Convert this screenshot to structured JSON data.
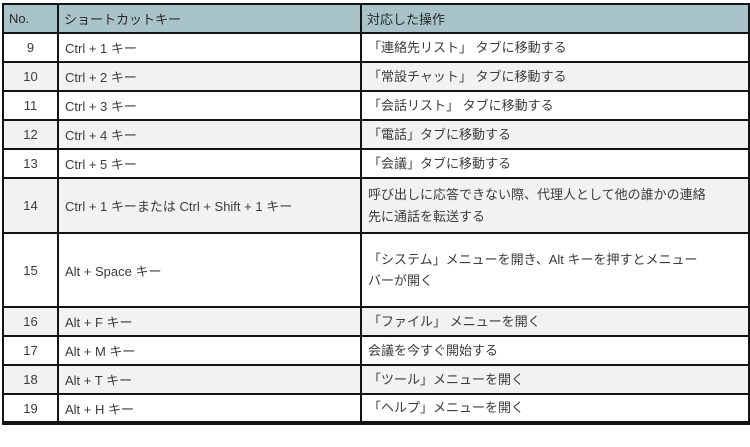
{
  "table": {
    "headers": {
      "no": "No.",
      "key": "ショートカットキー",
      "op": "対応した操作"
    },
    "rows": [
      {
        "no": "9",
        "key": "Ctrl + 1 キー",
        "op": "「連絡先リスト」 タブに移動する"
      },
      {
        "no": "10",
        "key": "Ctrl + 2 キー",
        "op": "「常設チャット」 タブに移動する"
      },
      {
        "no": "11",
        "key": "Ctrl + 3 キー",
        "op": "「会話リスト」 タブに移動する"
      },
      {
        "no": "12",
        "key": "Ctrl + 4 キー",
        "op": "「電話」タブに移動する"
      },
      {
        "no": "13",
        "key": "Ctrl + 5 キー",
        "op": "「会議」タブに移動する"
      },
      {
        "no": "14",
        "key": "Ctrl + 1 キーまたは Ctrl + Shift + 1 キー",
        "op": "呼び出しに応答できない際、代理人として他の誰かの連絡\n先に通話を転送する"
      },
      {
        "no": "15",
        "key": "Alt + Space キー",
        "op": "「システム」メニューを開き、Alt キーを押すとメニュー\nバーが開く"
      },
      {
        "no": "16",
        "key": "Alt + F キー",
        "op": "「ファイル」 メニューを開く"
      },
      {
        "no": "17",
        "key": "Alt + M キー",
        "op": "会議を今すぐ開始する"
      },
      {
        "no": "18",
        "key": "Alt + T キー",
        "op": "「ツール」メニューを開く"
      },
      {
        "no": "19",
        "key": "Alt + H キー",
        "op": "「ヘルプ」メニューを開く"
      }
    ],
    "colors": {
      "header_bg": "#a8c4c9",
      "row_bg": "#ffffff",
      "row_alt_bg": "#f2f2f2",
      "border": "#141414",
      "text": "#3b3b3b"
    }
  }
}
